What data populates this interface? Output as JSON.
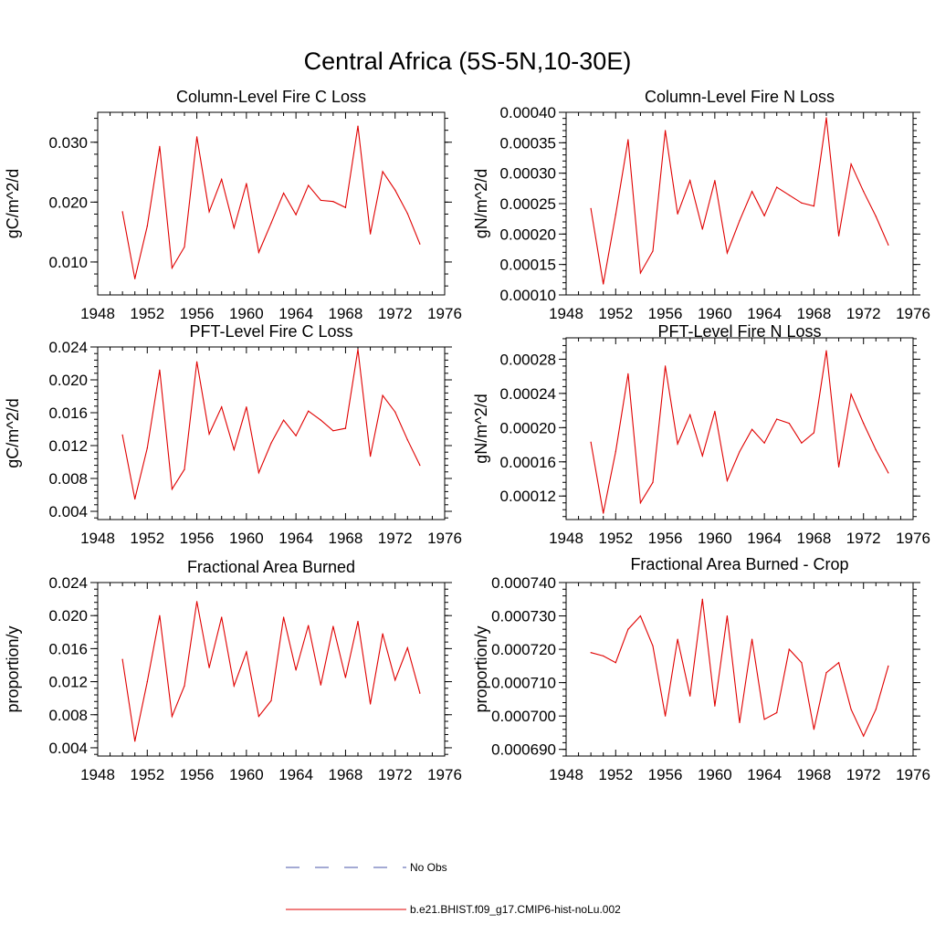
{
  "figure_title": "Central Africa (5S-5N,10-30E)",
  "legend": {
    "entries": [
      {
        "label": "No Obs",
        "color": "#4a55a8",
        "style": "dashed"
      },
      {
        "label": "b.e21.BHIST.f09_g17.CMIP6-hist-noLu.002",
        "color": "#e00000",
        "style": "solid"
      }
    ]
  },
  "chart_data": [
    {
      "type": "line",
      "title": "Column-Level Fire C Loss",
      "ylabel": "gC/m^2/d",
      "xlabel": "",
      "xlim": [
        1948,
        1976
      ],
      "ylim": [
        0.0045,
        0.035
      ],
      "xticks": [
        1948,
        1952,
        1956,
        1960,
        1964,
        1968,
        1972,
        1976
      ],
      "yticks": [
        0.01,
        0.02,
        0.03
      ],
      "ytick_labels": [
        "0.010",
        "0.020",
        "0.030"
      ],
      "x": [
        1950,
        1951,
        1952,
        1953,
        1954,
        1955,
        1956,
        1957,
        1958,
        1959,
        1960,
        1961,
        1962,
        1963,
        1964,
        1965,
        1966,
        1967,
        1968,
        1969,
        1970,
        1971,
        1972,
        1973,
        1974
      ],
      "series": [
        {
          "name": "b.e21.BHIST.f09_g17.CMIP6-hist-noLu.002",
          "color": "#e00000",
          "values": [
            0.0184,
            0.0072,
            0.016,
            0.0293,
            0.009,
            0.0125,
            0.0309,
            0.0184,
            0.0238,
            0.0157,
            0.0231,
            0.0116,
            0.0165,
            0.0215,
            0.0179,
            0.0228,
            0.0203,
            0.0201,
            0.0191,
            0.0327,
            0.0147,
            0.0251,
            0.022,
            0.0181,
            0.013
          ]
        }
      ]
    },
    {
      "type": "line",
      "title": "Column-Level Fire N Loss",
      "ylabel": "gN/m^2/d",
      "xlabel": "",
      "xlim": [
        1948,
        1976
      ],
      "ylim": [
        0.0001,
        0.0004
      ],
      "xticks": [
        1948,
        1952,
        1956,
        1960,
        1964,
        1968,
        1972,
        1976
      ],
      "yticks": [
        0.0001,
        0.00015,
        0.0002,
        0.00025,
        0.0003,
        0.00035,
        0.0004
      ],
      "ytick_labels": [
        "0.00010",
        "0.00015",
        "0.00020",
        "0.00025",
        "0.00030",
        "0.00035",
        "0.00040"
      ],
      "x": [
        1950,
        1951,
        1952,
        1953,
        1954,
        1955,
        1956,
        1957,
        1958,
        1959,
        1960,
        1961,
        1962,
        1963,
        1964,
        1965,
        1966,
        1967,
        1968,
        1969,
        1970,
        1971,
        1972,
        1973,
        1974
      ],
      "series": [
        {
          "name": "b.e21.BHIST.f09_g17.CMIP6-hist-noLu.002",
          "color": "#e00000",
          "values": [
            0.000242,
            0.000118,
            0.000232,
            0.000355,
            0.000136,
            0.000172,
            0.00037,
            0.000233,
            0.000288,
            0.000208,
            0.000288,
            0.000169,
            0.000222,
            0.00027,
            0.00023,
            0.000277,
            0.000264,
            0.000251,
            0.000246,
            0.000391,
            0.000197,
            0.000315,
            0.00027,
            0.000229,
            0.000182
          ]
        }
      ]
    },
    {
      "type": "line",
      "title": "PFT-Level Fire C Loss",
      "ylabel": "gC/m^2/d",
      "xlabel": "",
      "xlim": [
        1948,
        1976
      ],
      "ylim": [
        0.003,
        0.024
      ],
      "xticks": [
        1948,
        1952,
        1956,
        1960,
        1964,
        1968,
        1972,
        1976
      ],
      "yticks": [
        0.004,
        0.008,
        0.012,
        0.016,
        0.02,
        0.024
      ],
      "ytick_labels": [
        "0.004",
        "0.008",
        "0.012",
        "0.016",
        "0.020",
        "0.024"
      ],
      "x": [
        1950,
        1951,
        1952,
        1953,
        1954,
        1955,
        1956,
        1957,
        1958,
        1959,
        1960,
        1961,
        1962,
        1963,
        1964,
        1965,
        1966,
        1967,
        1968,
        1969,
        1970,
        1971,
        1972,
        1973,
        1974
      ],
      "series": [
        {
          "name": "b.e21.BHIST.f09_g17.CMIP6-hist-noLu.002",
          "color": "#e00000",
          "values": [
            0.0133,
            0.0055,
            0.0117,
            0.0212,
            0.0067,
            0.0091,
            0.0222,
            0.0134,
            0.0167,
            0.0115,
            0.0167,
            0.0087,
            0.0123,
            0.0151,
            0.0132,
            0.0162,
            0.0151,
            0.0138,
            0.0141,
            0.0237,
            0.0107,
            0.0181,
            0.0161,
            0.0127,
            0.0096
          ]
        }
      ]
    },
    {
      "type": "line",
      "title": "PFT-Level Fire N Loss",
      "ylabel": "gN/m^2/d",
      "xlabel": "",
      "xlim": [
        1948,
        1976
      ],
      "ylim": [
        9.25e-05,
        0.000305
      ],
      "xticks": [
        1948,
        1952,
        1956,
        1960,
        1964,
        1968,
        1972,
        1976
      ],
      "yticks": [
        0.00012,
        0.00016,
        0.0002,
        0.00024,
        0.00028
      ],
      "ytick_labels": [
        "0.00012",
        "0.00016",
        "0.00020",
        "0.00024",
        "0.00028"
      ],
      "x": [
        1950,
        1951,
        1952,
        1953,
        1954,
        1955,
        1956,
        1957,
        1958,
        1959,
        1960,
        1961,
        1962,
        1963,
        1964,
        1965,
        1966,
        1967,
        1968,
        1969,
        1970,
        1971,
        1972,
        1973,
        1974
      ],
      "series": [
        {
          "name": "b.e21.BHIST.f09_g17.CMIP6-hist-noLu.002",
          "color": "#e00000",
          "values": [
            0.000183,
            0.0001,
            0.000172,
            0.000263,
            0.000112,
            0.000136,
            0.000272,
            0.000181,
            0.000215,
            0.000167,
            0.000219,
            0.000138,
            0.000172,
            0.000198,
            0.000182,
            0.00021,
            0.000205,
            0.000182,
            0.000194,
            0.00029,
            0.000154,
            0.000239,
            0.000205,
            0.000174,
            0.000147
          ]
        }
      ]
    },
    {
      "type": "line",
      "title": "Fractional Area Burned",
      "ylabel": "proportion/y",
      "xlabel": "",
      "xlim": [
        1948,
        1976
      ],
      "ylim": [
        0.003,
        0.024
      ],
      "xticks": [
        1948,
        1952,
        1956,
        1960,
        1964,
        1968,
        1972,
        1976
      ],
      "yticks": [
        0.004,
        0.008,
        0.012,
        0.016,
        0.02,
        0.024
      ],
      "ytick_labels": [
        "0.004",
        "0.008",
        "0.012",
        "0.016",
        "0.020",
        "0.024"
      ],
      "x": [
        1950,
        1951,
        1952,
        1953,
        1954,
        1955,
        1956,
        1957,
        1958,
        1959,
        1960,
        1961,
        1962,
        1963,
        1964,
        1965,
        1966,
        1967,
        1968,
        1969,
        1970,
        1971,
        1972,
        1973,
        1974
      ],
      "series": [
        {
          "name": "b.e21.BHIST.f09_g17.CMIP6-hist-noLu.002",
          "color": "#e00000",
          "values": [
            0.0147,
            0.0048,
            0.012,
            0.02,
            0.0078,
            0.0115,
            0.0217,
            0.0137,
            0.0198,
            0.0115,
            0.0156,
            0.0078,
            0.0097,
            0.0198,
            0.0134,
            0.0188,
            0.0116,
            0.0187,
            0.0125,
            0.0193,
            0.0093,
            0.0178,
            0.0122,
            0.0161,
            0.0106
          ]
        }
      ]
    },
    {
      "type": "line",
      "title": "Fractional Area Burned - Crop",
      "ylabel": "proportion/y",
      "xlabel": "",
      "xlim": [
        1948,
        1976
      ],
      "ylim": [
        0.000688,
        0.00074
      ],
      "xticks": [
        1948,
        1952,
        1956,
        1960,
        1964,
        1968,
        1972,
        1976
      ],
      "yticks": [
        0.00069,
        0.0007,
        0.00071,
        0.00072,
        0.00073,
        0.00074
      ],
      "ytick_labels": [
        "0.000690",
        "0.000700",
        "0.000710",
        "0.000720",
        "0.000730",
        "0.000740"
      ],
      "x": [
        1950,
        1951,
        1952,
        1953,
        1954,
        1955,
        1956,
        1957,
        1958,
        1959,
        1960,
        1961,
        1962,
        1963,
        1964,
        1965,
        1966,
        1967,
        1968,
        1969,
        1970,
        1971,
        1972,
        1973,
        1974
      ],
      "series": [
        {
          "name": "b.e21.BHIST.f09_g17.CMIP6-hist-noLu.002",
          "color": "#e00000",
          "values": [
            0.000719,
            0.000718,
            0.000716,
            0.000726,
            0.00073,
            0.000721,
            0.0007,
            0.000723,
            0.000706,
            0.000735,
            0.000703,
            0.00073,
            0.000698,
            0.000723,
            0.000699,
            0.000701,
            0.00072,
            0.000716,
            0.000696,
            0.000713,
            0.000716,
            0.000702,
            0.000694,
            0.000702,
            0.000715
          ]
        }
      ]
    }
  ]
}
